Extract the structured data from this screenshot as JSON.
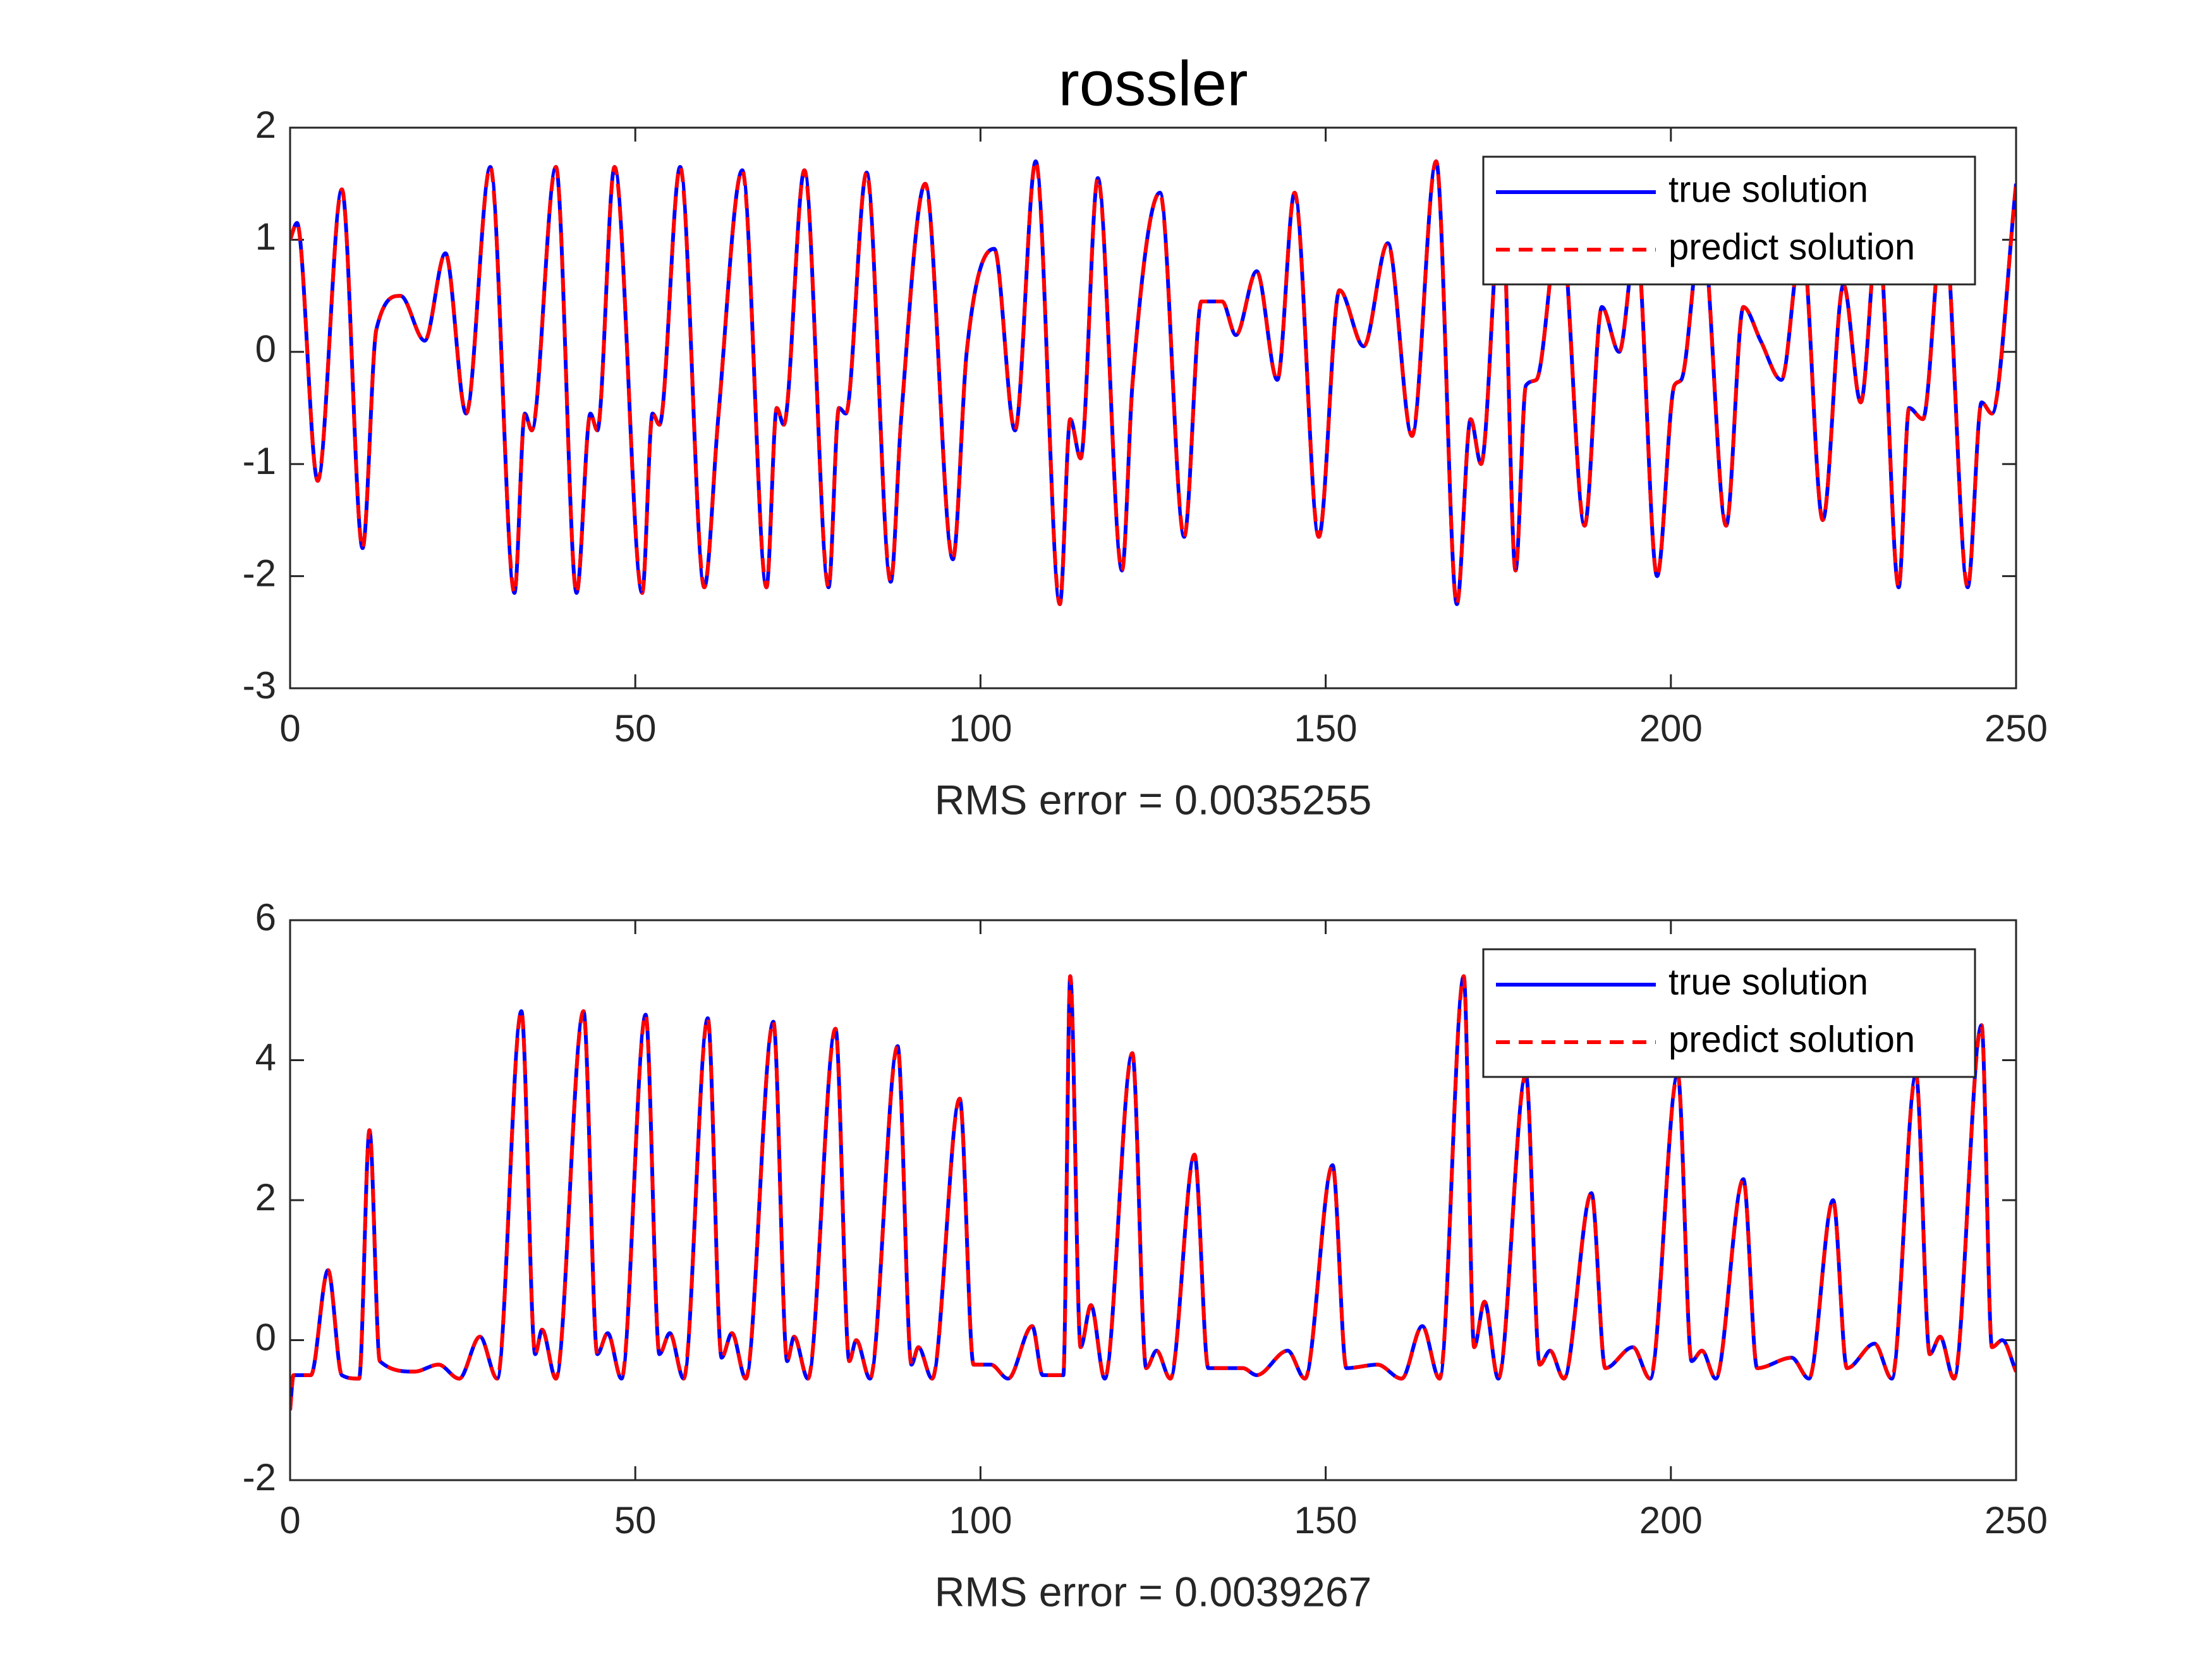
{
  "chart_data": [
    {
      "type": "line",
      "title": "rossler",
      "xlabel": "RMS error = 0.0035255",
      "x": [
        0,
        1,
        4,
        7.5,
        10.5,
        12.5,
        16,
        19.5,
        22.5,
        25.5,
        29,
        32.5,
        34,
        35,
        38.5,
        41.5,
        43.5,
        44.5,
        47,
        51,
        52.5,
        53.5,
        56.5,
        60,
        62,
        65.5,
        69,
        70.5,
        71.5,
        74.5,
        78,
        79.5,
        80.5,
        83.5,
        87,
        88.5,
        92,
        96,
        98,
        102,
        105,
        108,
        111.5,
        113,
        114.5,
        117,
        120.5,
        122,
        126,
        129.5,
        132,
        135,
        137,
        140,
        143,
        145.5,
        149,
        152,
        155.5,
        159,
        162.5,
        166,
        169,
        171,
        172.5,
        175.5,
        177.5,
        179,
        180.5,
        184,
        187.5,
        190,
        192.5,
        195,
        198,
        200.5,
        201.5,
        204.5,
        208,
        210.5,
        213,
        216,
        219,
        222,
        225,
        227.5,
        230,
        233,
        234.5,
        236.5,
        239.5,
        243,
        245,
        246.5,
        250
      ],
      "series": [
        {
          "name": "true solution",
          "color": "#0000ff",
          "style": "solid",
          "values": [
            1.0,
            1.15,
            -1.15,
            1.45,
            -1.75,
            0.2,
            0.5,
            0.1,
            0.88,
            -0.55,
            1.65,
            -2.15,
            -0.55,
            -0.7,
            1.65,
            -2.15,
            -0.55,
            -0.7,
            1.65,
            -2.15,
            -0.55,
            -0.65,
            1.65,
            -2.1,
            -0.6,
            1.62,
            -2.1,
            -0.5,
            -0.65,
            1.62,
            -2.1,
            -0.5,
            -0.55,
            1.6,
            -2.05,
            -0.6,
            1.5,
            -1.85,
            0.0,
            0.92,
            -0.7,
            1.7,
            -2.25,
            -0.6,
            -0.95,
            1.55,
            -1.95,
            -0.3,
            1.42,
            -1.65,
            0.45,
            0.45,
            0.15,
            0.72,
            -0.25,
            1.42,
            -1.65,
            0.55,
            0.05,
            0.97,
            -0.75,
            1.7,
            -2.25,
            -0.6,
            -1.0,
            1.4,
            -1.95,
            -0.3,
            -0.25,
            1.2,
            -1.55,
            0.4,
            0.0,
            1.0,
            -2.0,
            -0.3,
            -0.25,
            1.1,
            -1.55,
            0.4,
            0.1,
            -0.25,
            1.0,
            -1.5,
            0.6,
            -0.45,
            1.1,
            -2.1,
            -0.5,
            -0.6,
            1.2,
            -2.1,
            -0.45,
            -0.55,
            1.5
          ]
        },
        {
          "name": "predict solution",
          "color": "#ff0000",
          "style": "dashed",
          "values": [
            1.0,
            1.15,
            -1.15,
            1.45,
            -1.75,
            0.2,
            0.5,
            0.1,
            0.88,
            -0.55,
            1.65,
            -2.15,
            -0.55,
            -0.7,
            1.65,
            -2.15,
            -0.55,
            -0.7,
            1.65,
            -2.15,
            -0.55,
            -0.65,
            1.65,
            -2.1,
            -0.6,
            1.62,
            -2.1,
            -0.5,
            -0.65,
            1.62,
            -2.1,
            -0.5,
            -0.55,
            1.6,
            -2.05,
            -0.6,
            1.5,
            -1.85,
            0.0,
            0.92,
            -0.7,
            1.7,
            -2.25,
            -0.6,
            -0.95,
            1.55,
            -1.95,
            -0.3,
            1.42,
            -1.65,
            0.45,
            0.45,
            0.15,
            0.72,
            -0.25,
            1.42,
            -1.65,
            0.55,
            0.05,
            0.97,
            -0.75,
            1.7,
            -2.25,
            -0.6,
            -1.0,
            1.4,
            -1.95,
            -0.3,
            -0.25,
            1.2,
            -1.55,
            0.4,
            0.0,
            1.0,
            -2.0,
            -0.3,
            -0.25,
            1.1,
            -1.55,
            0.4,
            0.1,
            -0.25,
            1.0,
            -1.5,
            0.6,
            -0.45,
            1.1,
            -2.1,
            -0.5,
            -0.6,
            1.2,
            -2.1,
            -0.45,
            -0.55,
            1.5
          ]
        }
      ],
      "xlim": [
        0,
        250
      ],
      "xticks": [
        0,
        50,
        100,
        150,
        200,
        250
      ],
      "ylim": [
        -3,
        2
      ],
      "yticks": [
        -3,
        -2,
        -1,
        0,
        1,
        2
      ],
      "legend": "upper right"
    },
    {
      "type": "line",
      "xlabel": "RMS error = 0.0039267",
      "x": [
        0,
        0.5,
        3,
        5.5,
        7.5,
        10,
        11.5,
        13,
        18,
        21.5,
        24.5,
        27.5,
        30,
        33.5,
        35.5,
        36.5,
        38.5,
        42.5,
        44.5,
        46,
        48,
        51.5,
        53.5,
        55,
        57,
        60.5,
        62.5,
        64,
        66,
        70,
        72,
        73,
        75,
        79,
        81,
        82,
        84,
        88,
        90,
        91,
        93,
        97,
        99,
        101.5,
        104,
        107.5,
        109,
        112,
        113,
        114.5,
        116,
        118,
        122,
        124,
        125.5,
        127.5,
        131,
        133,
        138,
        140,
        144.5,
        147,
        151,
        153,
        157.5,
        161,
        164,
        166.5,
        170,
        171.5,
        173,
        175,
        179,
        181,
        182.5,
        184.5,
        188.5,
        190.5,
        194.5,
        197,
        201,
        203,
        204.5,
        206.5,
        210.5,
        212.5,
        217.5,
        220,
        223.5,
        225.5,
        229.5,
        232,
        235.5,
        237.5,
        239,
        241,
        245,
        246.5,
        248,
        250
      ],
      "series": [
        {
          "name": "true solution",
          "color": "#0000ff",
          "style": "solid",
          "values": [
            -1.0,
            -0.5,
            -0.5,
            1.0,
            -0.5,
            -0.55,
            3.0,
            -0.3,
            -0.45,
            -0.35,
            -0.55,
            0.05,
            -0.55,
            4.7,
            -0.2,
            0.15,
            -0.55,
            4.7,
            -0.2,
            0.1,
            -0.55,
            4.65,
            -0.2,
            0.1,
            -0.55,
            4.6,
            -0.25,
            0.1,
            -0.55,
            4.55,
            -0.3,
            0.05,
            -0.55,
            4.45,
            -0.3,
            0.0,
            -0.55,
            4.2,
            -0.35,
            -0.1,
            -0.55,
            3.45,
            -0.35,
            -0.35,
            -0.55,
            0.2,
            -0.5,
            -0.5,
            5.2,
            -0.1,
            0.5,
            -0.55,
            4.1,
            -0.4,
            -0.15,
            -0.55,
            2.65,
            -0.4,
            -0.4,
            -0.5,
            -0.15,
            -0.55,
            2.5,
            -0.4,
            -0.35,
            -0.55,
            0.2,
            -0.55,
            5.2,
            -0.1,
            0.55,
            -0.55,
            3.8,
            -0.35,
            -0.15,
            -0.55,
            2.1,
            -0.4,
            -0.1,
            -0.55,
            3.8,
            -0.3,
            -0.15,
            -0.55,
            2.3,
            -0.4,
            -0.25,
            -0.55,
            2.0,
            -0.4,
            -0.05,
            -0.55,
            3.8,
            -0.2,
            0.05,
            -0.55,
            4.5,
            -0.1,
            0.0,
            -0.45
          ]
        },
        {
          "name": "predict solution",
          "color": "#ff0000",
          "style": "dashed",
          "values": [
            -1.0,
            -0.5,
            -0.5,
            1.0,
            -0.5,
            -0.55,
            3.0,
            -0.3,
            -0.45,
            -0.35,
            -0.55,
            0.05,
            -0.55,
            4.7,
            -0.2,
            0.15,
            -0.55,
            4.7,
            -0.2,
            0.1,
            -0.55,
            4.65,
            -0.2,
            0.1,
            -0.55,
            4.6,
            -0.25,
            0.1,
            -0.55,
            4.55,
            -0.3,
            0.05,
            -0.55,
            4.45,
            -0.3,
            0.0,
            -0.55,
            4.2,
            -0.35,
            -0.1,
            -0.55,
            3.45,
            -0.35,
            -0.35,
            -0.55,
            0.2,
            -0.5,
            -0.5,
            5.2,
            -0.1,
            0.5,
            -0.55,
            4.1,
            -0.4,
            -0.15,
            -0.55,
            2.65,
            -0.4,
            -0.4,
            -0.5,
            -0.15,
            -0.55,
            2.5,
            -0.4,
            -0.35,
            -0.55,
            0.2,
            -0.55,
            5.2,
            -0.1,
            0.55,
            -0.55,
            3.8,
            -0.35,
            -0.15,
            -0.55,
            2.1,
            -0.4,
            -0.1,
            -0.55,
            3.8,
            -0.3,
            -0.15,
            -0.55,
            2.3,
            -0.4,
            -0.25,
            -0.55,
            2.0,
            -0.4,
            -0.05,
            -0.55,
            3.8,
            -0.2,
            0.05,
            -0.55,
            4.5,
            -0.1,
            0.0,
            -0.45
          ]
        }
      ],
      "xlim": [
        0,
        250
      ],
      "xticks": [
        0,
        50,
        100,
        150,
        200,
        250
      ],
      "ylim": [
        -2,
        6
      ],
      "yticks": [
        -2,
        0,
        2,
        4,
        6
      ],
      "legend": "upper right"
    }
  ]
}
